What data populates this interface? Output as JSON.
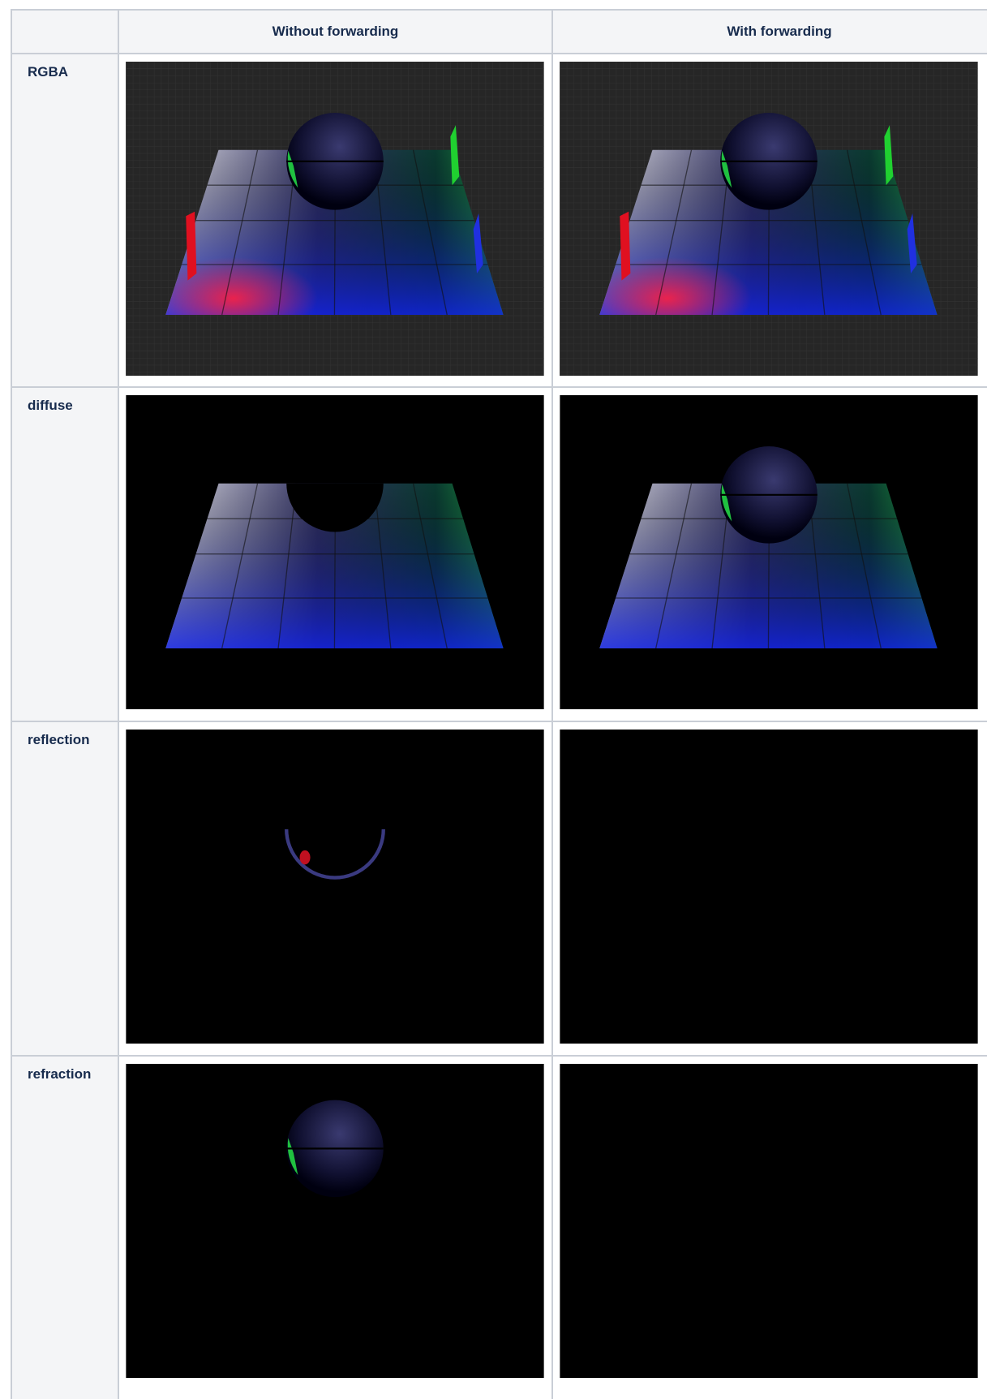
{
  "header": {
    "columns": [
      "Without forwarding",
      "With forwarding"
    ]
  },
  "rows": [
    {
      "label": "RGBA"
    },
    {
      "label": "diffuse"
    },
    {
      "label": "reflection"
    },
    {
      "label": "refraction"
    }
  ]
}
